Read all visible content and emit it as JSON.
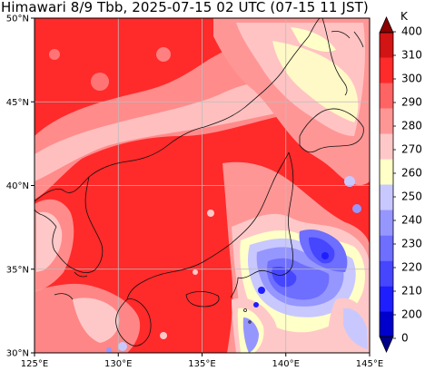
{
  "title": "Himawari 8/9 Tbb, 2025-07-15 02 UTC (07-15 11 JST)",
  "map": {
    "lon_range": [
      125,
      145
    ],
    "lat_range": [
      30,
      50
    ],
    "x_tick_labels": [
      "125°E",
      "130°E",
      "135°E",
      "140°E",
      "145°E"
    ],
    "y_tick_labels": [
      "30°N",
      "35°N",
      "40°N",
      "45°N",
      "50°N"
    ],
    "gridlines": true
  },
  "colorbar": {
    "unit": "K",
    "levels": [
      0,
      200,
      210,
      220,
      230,
      240,
      250,
      260,
      270,
      280,
      290,
      300,
      310,
      400
    ],
    "colors": [
      "#00008b",
      "#0000cd",
      "#1e1eff",
      "#4646ff",
      "#6e6eff",
      "#9696ff",
      "#c8c8ff",
      "#ffffc8",
      "#ffc8c8",
      "#ff9696",
      "#ff6464",
      "#ff2a2a",
      "#d21414",
      "#8b0000"
    ]
  }
}
